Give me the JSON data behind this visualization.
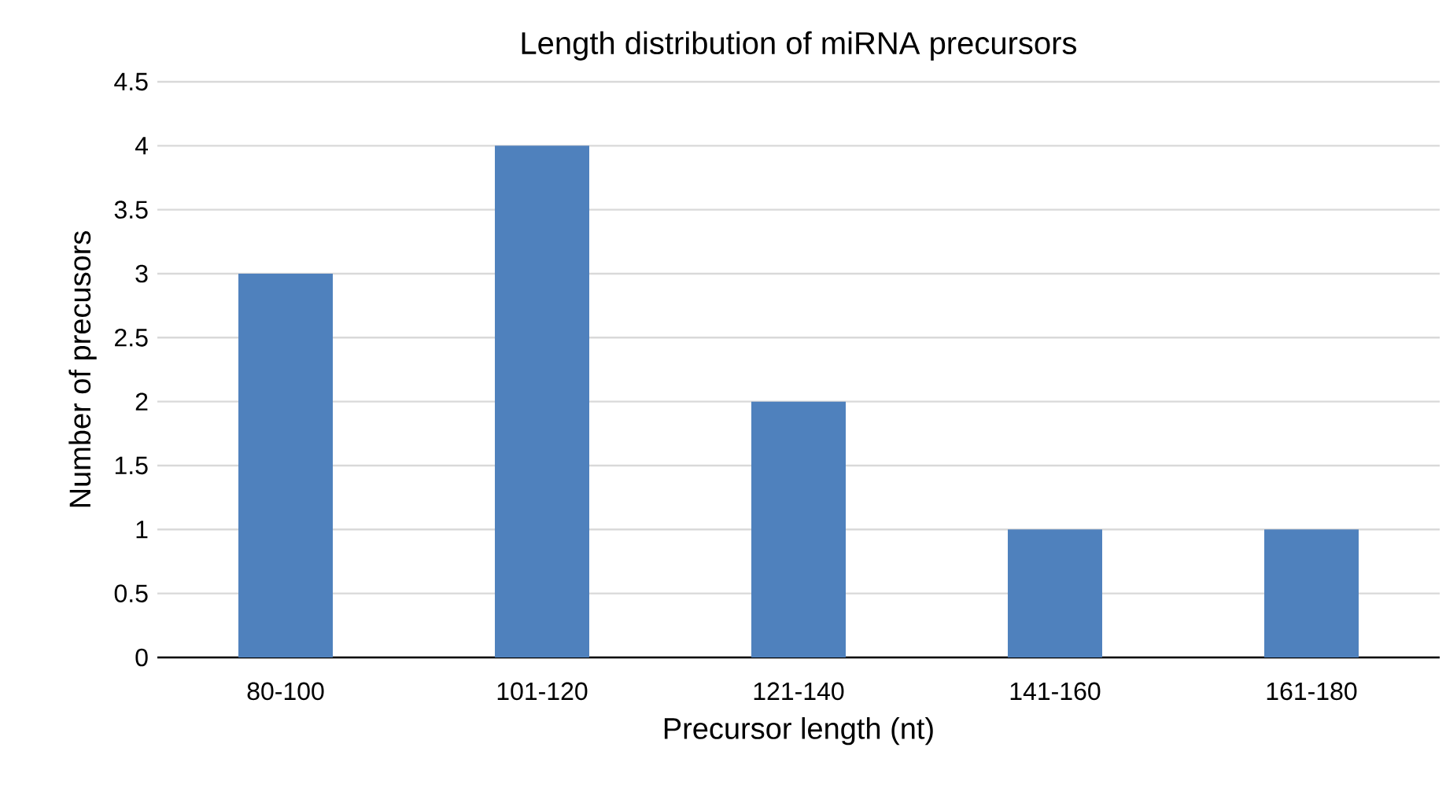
{
  "chart_data": {
    "type": "bar",
    "title": "Length distribution of miRNA precursors",
    "xlabel": "Precursor length (nt)",
    "ylabel": "Number of precusors",
    "categories": [
      "80-100",
      "101-120",
      "121-140",
      "141-160",
      "161-180"
    ],
    "values": [
      3,
      4,
      2,
      1,
      1
    ],
    "color": "#4f81bd",
    "ylim": [
      0,
      4.5
    ],
    "yticks": [
      0,
      0.5,
      1,
      1.5,
      2,
      2.5,
      3,
      3.5,
      4,
      4.5
    ],
    "grid": "y"
  }
}
